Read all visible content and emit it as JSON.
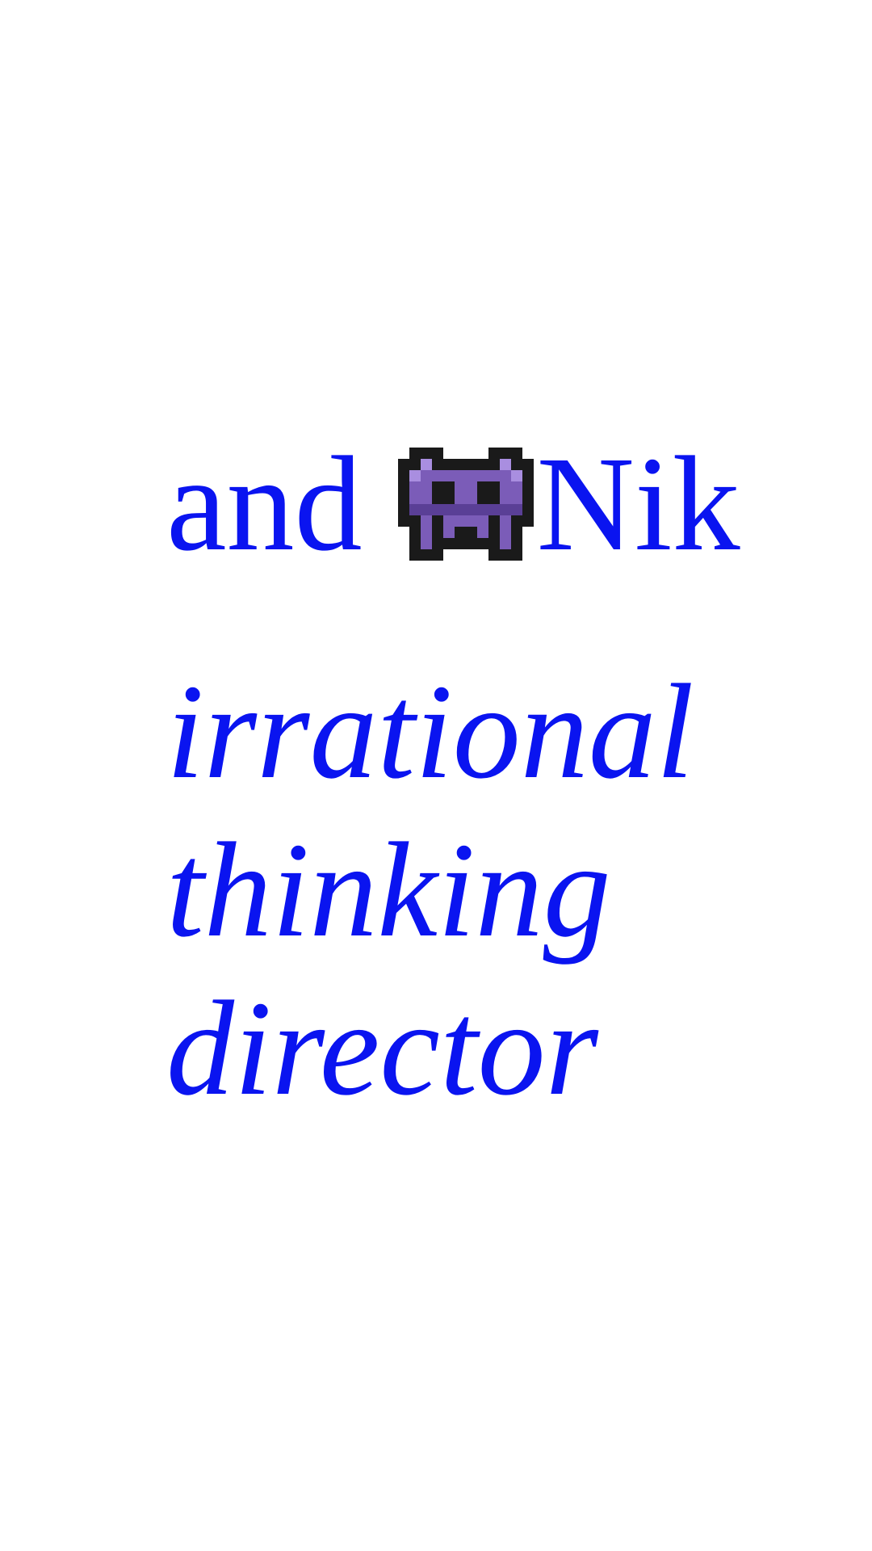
{
  "colors": {
    "text": "#0a14f0",
    "background": "#ffffff",
    "alien_fill": "#7b5cb8",
    "alien_outline": "#1a1a1a",
    "alien_highlight": "#a98ee0",
    "alien_shade": "#5a3f96"
  },
  "header": {
    "prefix": "and",
    "icon": "space-invader-alien-icon",
    "name": "Nik"
  },
  "role": {
    "lines": [
      "irrational",
      "thinking",
      "director"
    ]
  }
}
